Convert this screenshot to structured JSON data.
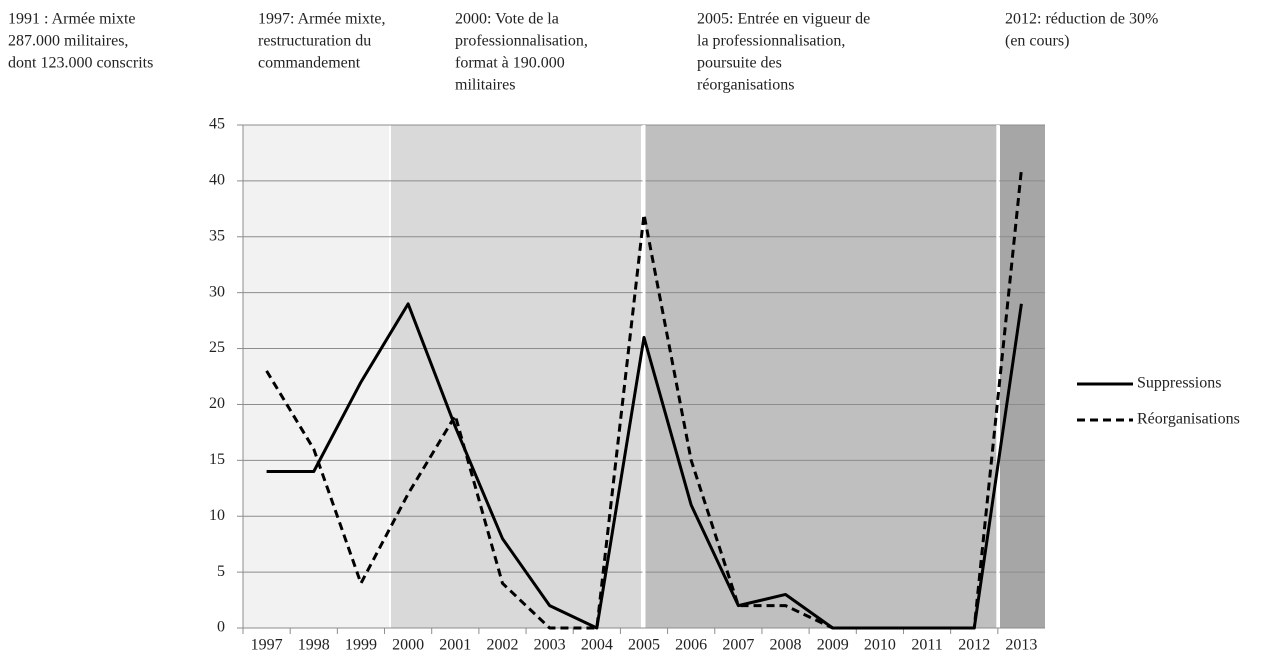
{
  "chart_data": {
    "type": "line",
    "annotations": [
      [
        "1991 : Armée mixte",
        "287.000 militaires,",
        "dont 123.000 conscrits"
      ],
      [
        "1997: Armée mixte,",
        "restructuration du",
        "commandement"
      ],
      [
        "2000: Vote de la",
        "professionnalisation,",
        "format à 190.000",
        "militaires"
      ],
      [
        "2005: Entrée en vigueur de",
        "la professionnalisation,",
        "poursuite des",
        "réorganisations"
      ],
      [
        "2012: réduction de 30%",
        "(en cours)"
      ]
    ],
    "categories": [
      "1997",
      "1998",
      "1999",
      "2000",
      "2001",
      "2002",
      "2003",
      "2004",
      "2005",
      "2006",
      "2007",
      "2008",
      "2009",
      "2010",
      "2011",
      "2012",
      "2013"
    ],
    "series": [
      {
        "name": "Suppressions",
        "color": "#000000",
        "dash": "none",
        "values": [
          14,
          14,
          22,
          29,
          18,
          8,
          2,
          0,
          26,
          11,
          2,
          3,
          0,
          0,
          0,
          0,
          29
        ]
      },
      {
        "name": "Réorganisations",
        "color": "#000000",
        "dash": "8,5",
        "values": [
          23,
          16,
          4,
          12,
          19,
          4,
          0,
          0,
          37,
          15,
          2,
          2,
          0,
          0,
          0,
          0,
          41
        ]
      }
    ],
    "ylim": [
      0,
      45
    ],
    "yticks": [
      0,
      5,
      10,
      15,
      20,
      25,
      30,
      35,
      40,
      45
    ],
    "grid": true,
    "legend": "right"
  }
}
